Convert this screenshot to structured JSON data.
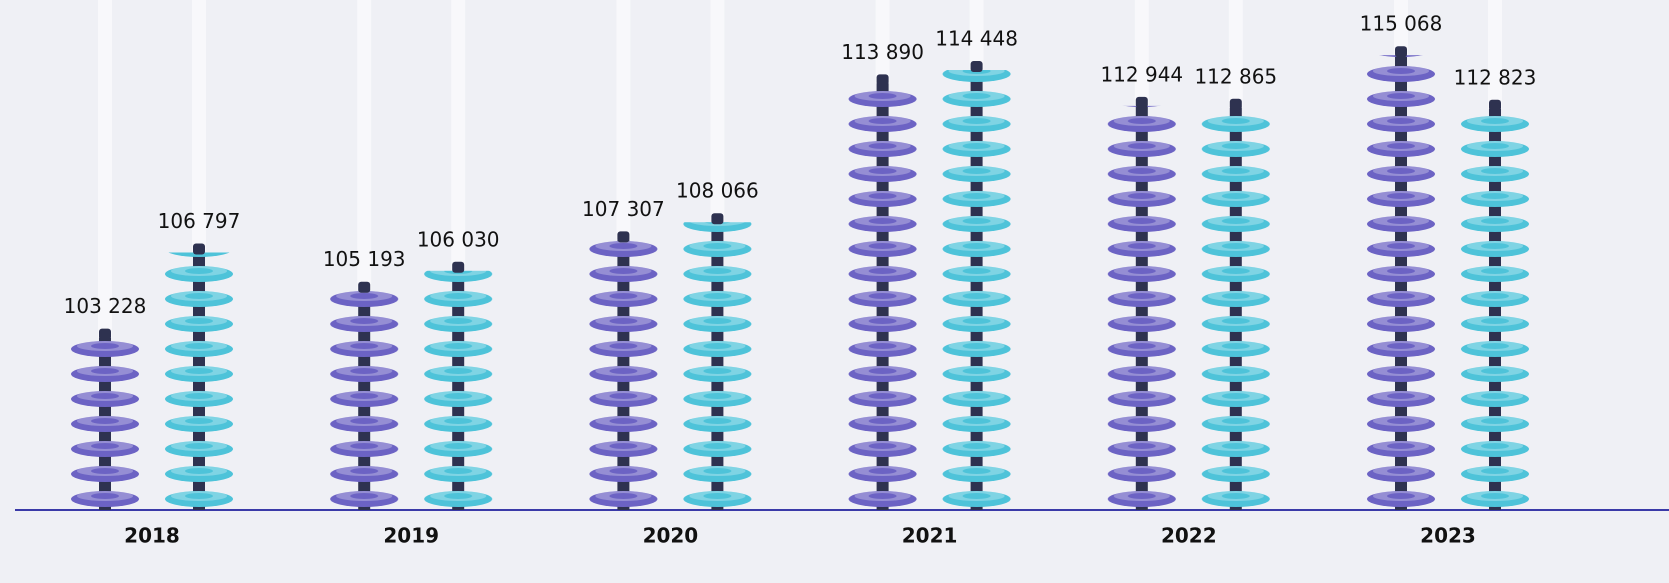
{
  "chart_data": {
    "type": "bar",
    "categories": [
      "2018",
      "2019",
      "2020",
      "2021",
      "2022",
      "2023"
    ],
    "series": [
      {
        "color": "#6c63c4",
        "values": [
          103228,
          105193,
          107307,
          113890,
          112944,
          115068
        ],
        "value_labels": [
          "103 228",
          "105 193",
          "107 307",
          "113 890",
          "112 944",
          "115 068"
        ]
      },
      {
        "color": "#4ec3d9",
        "values": [
          106797,
          106030,
          108066,
          114448,
          112865,
          112823
        ],
        "value_labels": [
          "106 797",
          "106 030",
          "108 066",
          "114 448",
          "112 865",
          "112 823"
        ]
      }
    ],
    "ylim": [
      96000,
      116000
    ]
  }
}
